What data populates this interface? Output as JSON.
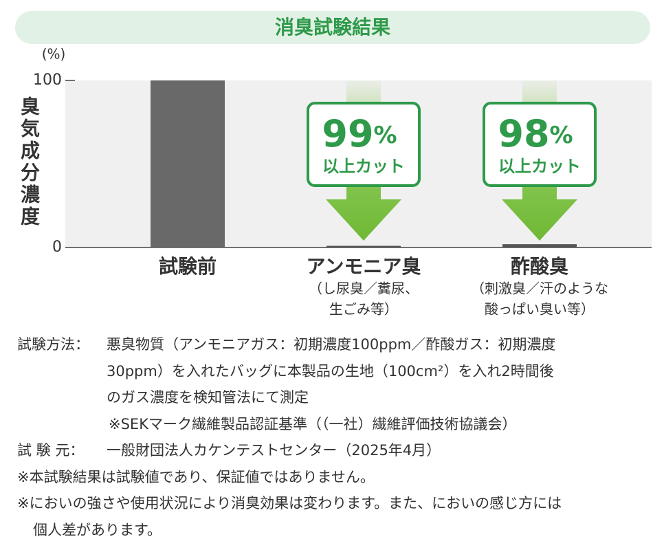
{
  "chart_data": {
    "type": "bar",
    "title": "消臭試験結果",
    "unit_label": "(%)",
    "y_axis_label": "臭気成分濃度",
    "categories": [
      "試験前",
      "アンモニア臭",
      "酢酸臭"
    ],
    "category_notes": [
      null,
      [
        "（し尿臭／糞尿、",
        "生ごみ等）"
      ],
      [
        "（刺激臭／汗のような",
        "酸っぱい臭い等）"
      ]
    ],
    "values": [
      100,
      1,
      2
    ],
    "color": "#696969",
    "ylim": [
      0,
      100
    ],
    "yticks": [
      0,
      100
    ],
    "annotations": [
      {
        "number": "99",
        "unit": "%",
        "text": "以上カット"
      },
      {
        "number": "98",
        "unit": "%",
        "text": "以上カット"
      }
    ]
  },
  "notes": [
    {
      "label": "試験方法：",
      "lines": [
        "悪臭物質（アンモニアガス：初期濃度100ppm／酢酸ガス：初期濃度",
        "30ppm）を入れたバッグに本製品の生地（100cm²）を入れ2時間後",
        "のガス濃度を検知管法にて測定",
        "※SEKマーク繊維製品認証基準（（一社）繊維評価技術協議会）"
      ]
    },
    {
      "label": "試 験 元：",
      "lines": [
        "一般財団法人カケンテストセンター（2025年4月）"
      ]
    },
    {
      "label": null,
      "lines": [
        "※本試験結果は試験値であり、保証値ではありません。"
      ]
    },
    {
      "label": null,
      "lines": [
        "※においの強さや使用状況により消臭効果は変わります。また、においの感じ方には",
        "個人差があります。"
      ]
    }
  ]
}
